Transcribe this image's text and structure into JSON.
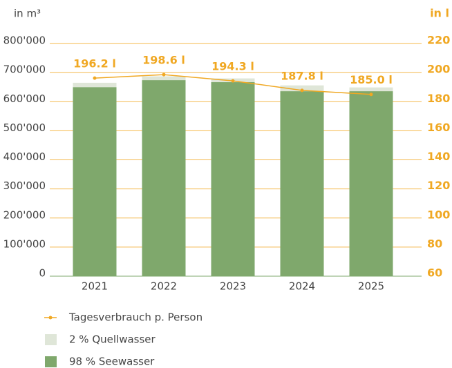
{
  "chart_data": {
    "type": "bar",
    "y_label": "in m³",
    "y2_label": "in l",
    "categories": [
      "2021",
      "2022",
      "2023",
      "2024",
      "2025"
    ],
    "series": [
      {
        "name": "Tagesverbrauch p. Person",
        "type": "line",
        "axis": "y2",
        "color": "#f0a823",
        "values": [
          196.2,
          198.6,
          194.3,
          187.8,
          185.0
        ],
        "value_labels": [
          "196.2 l",
          "198.6 l",
          "194.3 l",
          "187.8 l",
          "185.0 l"
        ]
      },
      {
        "name": "2 % Quellwasser",
        "type": "bar",
        "color": "#dfe6d8",
        "values": [
          15000,
          13000,
          13000,
          20000,
          13000
        ]
      },
      {
        "name": "98 % Seewasser",
        "type": "bar",
        "color": "#7fa86c",
        "values": [
          650000,
          674000,
          667000,
          636000,
          636000
        ]
      }
    ],
    "ylim": [
      0,
      800000
    ],
    "yticks": [
      0,
      {
        "value": 100000,
        "label": "100'000"
      },
      {
        "value": 200000,
        "label": "200'000"
      },
      {
        "value": 300000,
        "label": "300'000"
      },
      {
        "value": 400000,
        "label": "400'000"
      },
      {
        "value": 500000,
        "label": "500'000"
      },
      {
        "value": 600000,
        "label": "600'000"
      },
      {
        "value": 700000,
        "label": "700'000"
      },
      {
        "value": 800000,
        "label": "800'000"
      }
    ],
    "y2lim": [
      60,
      220
    ],
    "y2ticks": [
      60,
      80,
      100,
      120,
      140,
      160,
      180,
      200,
      220
    ],
    "grid": true
  }
}
